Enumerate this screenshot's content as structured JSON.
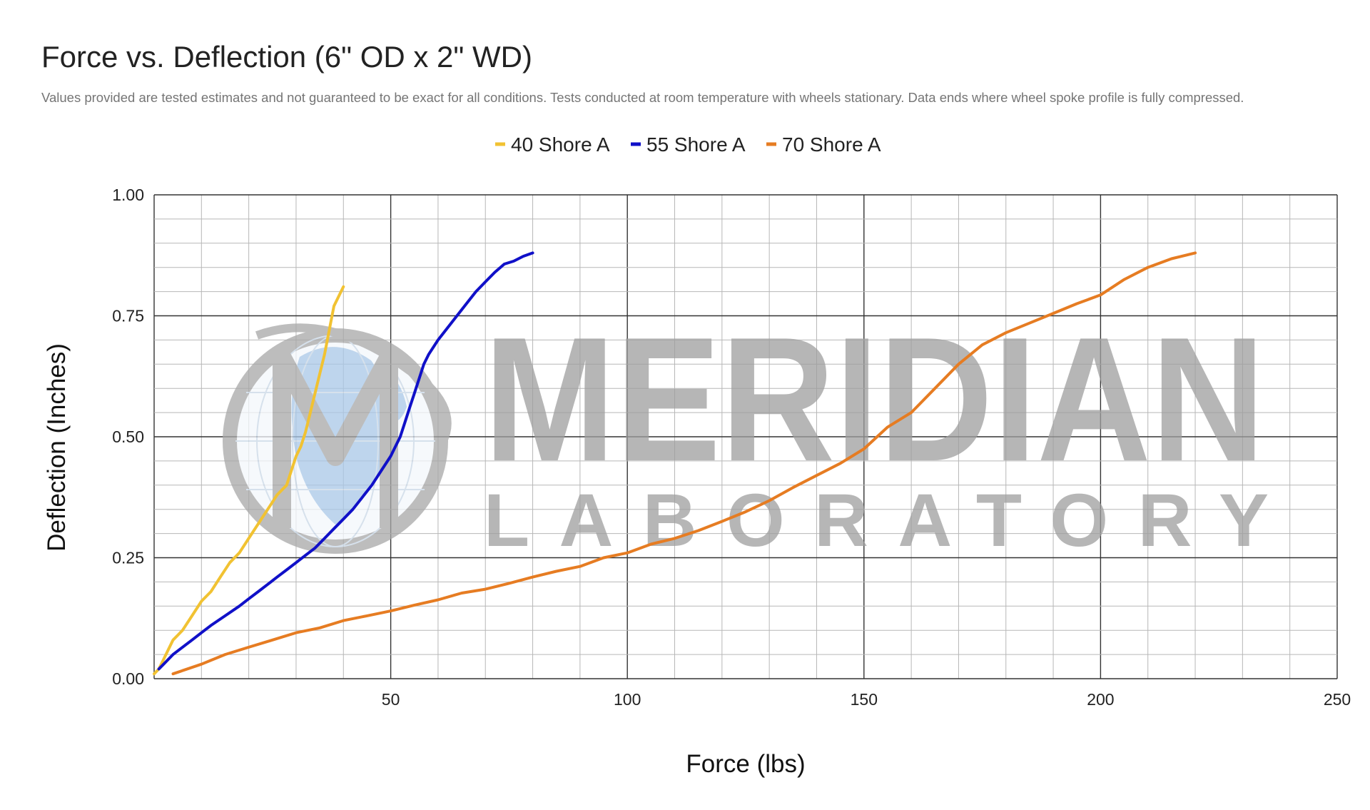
{
  "chart_data": {
    "type": "line",
    "title": "Force vs. Deflection (6\" OD x 2\" WD)",
    "subtitle": "Values provided are tested estimates and not guaranteed to be exact for all conditions. Tests conducted at room temperature with wheels stationary. Data ends where wheel spoke profile is fully compressed.",
    "xlabel": "Force (lbs)",
    "ylabel": "Deflection (Inches)",
    "xlim": [
      0,
      250
    ],
    "ylim": [
      0,
      1
    ],
    "xticks": [
      "50",
      "100",
      "150",
      "200",
      "250"
    ],
    "yticks": [
      "0.00",
      "0.25",
      "0.50",
      "0.75",
      "1.00"
    ],
    "grid": true,
    "legend_position": "top",
    "series": [
      {
        "name": "40 Shore A",
        "color": "#f1c232",
        "x": [
          0,
          1,
          2,
          3,
          4,
          5,
          6,
          8,
          10,
          12,
          14,
          16,
          18,
          20,
          22,
          24,
          26,
          28,
          29,
          30,
          31,
          32,
          33,
          34,
          35,
          36,
          37,
          38,
          39,
          40
        ],
        "y": [
          0.01,
          0.02,
          0.04,
          0.06,
          0.08,
          0.09,
          0.1,
          0.13,
          0.16,
          0.18,
          0.21,
          0.24,
          0.26,
          0.29,
          0.32,
          0.35,
          0.38,
          0.4,
          0.43,
          0.46,
          0.48,
          0.51,
          0.55,
          0.59,
          0.63,
          0.67,
          0.72,
          0.77,
          0.79,
          0.81
        ]
      },
      {
        "name": "55 Shore A",
        "color": "#1010c8",
        "x": [
          1,
          2,
          3,
          4,
          6,
          8,
          10,
          12,
          15,
          18,
          20,
          22,
          24,
          26,
          28,
          30,
          32,
          34,
          36,
          38,
          40,
          42,
          44,
          46,
          48,
          50,
          52,
          53,
          54,
          55,
          56,
          57,
          58,
          60,
          62,
          64,
          66,
          68,
          70,
          72,
          74,
          76,
          78,
          80
        ],
        "y": [
          0.02,
          0.03,
          0.04,
          0.05,
          0.065,
          0.08,
          0.095,
          0.11,
          0.13,
          0.15,
          0.165,
          0.18,
          0.195,
          0.21,
          0.225,
          0.24,
          0.255,
          0.27,
          0.29,
          0.31,
          0.33,
          0.35,
          0.375,
          0.4,
          0.43,
          0.46,
          0.5,
          0.53,
          0.56,
          0.59,
          0.62,
          0.65,
          0.67,
          0.7,
          0.725,
          0.75,
          0.775,
          0.8,
          0.82,
          0.84,
          0.857,
          0.863,
          0.873,
          0.88
        ]
      },
      {
        "name": "70 Shore A",
        "color": "#e67c22",
        "x": [
          4,
          10,
          15,
          20,
          25,
          30,
          35,
          40,
          45,
          50,
          55,
          60,
          65,
          70,
          75,
          80,
          85,
          90,
          95,
          100,
          105,
          110,
          115,
          120,
          125,
          130,
          135,
          140,
          145,
          150,
          155,
          160,
          165,
          170,
          175,
          180,
          185,
          190,
          195,
          200,
          205,
          210,
          215,
          220
        ],
        "y": [
          0.01,
          0.03,
          0.05,
          0.065,
          0.08,
          0.095,
          0.105,
          0.12,
          0.13,
          0.14,
          0.152,
          0.163,
          0.177,
          0.185,
          0.197,
          0.21,
          0.222,
          0.232,
          0.25,
          0.26,
          0.278,
          0.29,
          0.306,
          0.325,
          0.345,
          0.368,
          0.395,
          0.42,
          0.445,
          0.475,
          0.52,
          0.55,
          0.6,
          0.65,
          0.69,
          0.715,
          0.735,
          0.755,
          0.775,
          0.793,
          0.825,
          0.85,
          0.868,
          0.88
        ]
      }
    ]
  },
  "watermark": {
    "brand": "MERIDIAN",
    "tagline": "LABORATORY",
    "icon": "globe-m-logo"
  }
}
